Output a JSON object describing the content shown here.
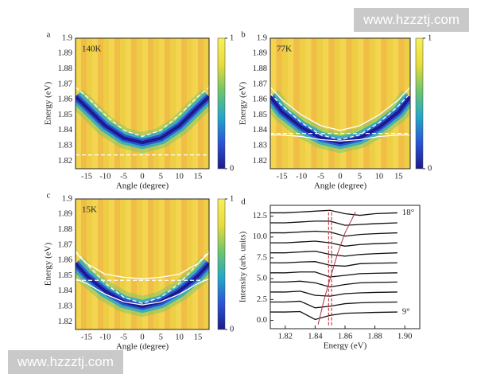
{
  "chart_data": [
    {
      "type": "heatmap",
      "label": "a",
      "annotation": "140K",
      "xlabel": "Angle (degree)",
      "ylabel": "Energy (eV)",
      "xlim": [
        -18,
        18
      ],
      "xticks": [
        -15,
        -10,
        -5,
        0,
        5,
        10,
        15
      ],
      "ylim": [
        1.815,
        1.9
      ],
      "yticks": [
        1.82,
        1.83,
        1.84,
        1.85,
        1.86,
        1.87,
        1.88,
        1.89,
        1.9
      ],
      "clim": [
        0,
        1
      ],
      "colorbar_ticks": [
        0,
        1
      ],
      "colormap": [
        "#1d1a8a",
        "#2a55d6",
        "#25a8c8",
        "#6fc66a",
        "#e9dc3c",
        "#f7f05a"
      ],
      "background": "#f2c64a",
      "x": [
        -18,
        -15,
        -10,
        -5,
        0,
        5,
        10,
        15,
        18
      ],
      "band": [
        1.862,
        1.855,
        1.843,
        1.835,
        1.832,
        1.835,
        1.843,
        1.855,
        1.862
      ],
      "curves": [
        {
          "color": "#ffffff",
          "style": "dashed",
          "values": [
            1.868,
            1.862,
            1.85,
            1.84,
            1.836,
            1.84,
            1.85,
            1.862,
            1.868
          ]
        },
        {
          "color": "#ffffff",
          "style": "dashed",
          "values": [
            1.824,
            1.824,
            1.824,
            1.824,
            1.824,
            1.824,
            1.824,
            1.824,
            1.824
          ]
        }
      ]
    },
    {
      "type": "heatmap",
      "label": "b",
      "annotation": "77K",
      "xlabel": "Angle (degree)",
      "ylabel": "Energy (eV)",
      "xlim": [
        -18,
        18
      ],
      "xticks": [
        -15,
        -10,
        -5,
        0,
        5,
        10,
        15
      ],
      "ylim": [
        1.815,
        1.9
      ],
      "yticks": [
        1.82,
        1.83,
        1.84,
        1.85,
        1.86,
        1.87,
        1.88,
        1.89,
        1.9
      ],
      "clim": [
        0,
        1
      ],
      "colorbar_ticks": [
        0,
        1
      ],
      "colormap": [
        "#1d1a8a",
        "#2a55d6",
        "#25a8c8",
        "#6fc66a",
        "#e9dc3c",
        "#f7f05a"
      ],
      "background": "#f2c64a",
      "x": [
        -18,
        -15,
        -10,
        -5,
        0,
        5,
        10,
        15,
        18
      ],
      "band": [
        1.862,
        1.852,
        1.842,
        1.835,
        1.832,
        1.835,
        1.842,
        1.852,
        1.862
      ],
      "curves": [
        {
          "color": "#ffffff",
          "style": "solid",
          "values": [
            1.868,
            1.86,
            1.85,
            1.843,
            1.84,
            1.843,
            1.85,
            1.86,
            1.868
          ]
        },
        {
          "color": "#ffffff",
          "style": "dashed",
          "values": [
            1.864,
            1.856,
            1.845,
            1.837,
            1.834,
            1.837,
            1.845,
            1.856,
            1.864
          ]
        },
        {
          "color": "#ffffff",
          "style": "dashed",
          "values": [
            1.838,
            1.838,
            1.838,
            1.838,
            1.838,
            1.838,
            1.838,
            1.838,
            1.838
          ]
        },
        {
          "color": "#ffffff",
          "style": "solid",
          "values": [
            1.837,
            1.837,
            1.836,
            1.834,
            1.833,
            1.834,
            1.836,
            1.837,
            1.837
          ]
        }
      ]
    },
    {
      "type": "heatmap",
      "label": "c",
      "annotation": "15K",
      "xlabel": "Angle (degree)",
      "ylabel": "Energy (eV)",
      "xlim": [
        -18,
        18
      ],
      "xticks": [
        -15,
        -10,
        -5,
        0,
        5,
        10,
        15
      ],
      "ylim": [
        1.815,
        1.9
      ],
      "yticks": [
        1.82,
        1.83,
        1.84,
        1.85,
        1.86,
        1.87,
        1.88,
        1.89,
        1.9
      ],
      "clim": [
        0,
        1
      ],
      "colorbar_ticks": [
        0,
        1
      ],
      "colormap": [
        "#1d1a8a",
        "#2a55d6",
        "#25a8c8",
        "#6fc66a",
        "#e9dc3c",
        "#f7f05a"
      ],
      "background": "#f2c64a",
      "x": [
        -18,
        -15,
        -10,
        -5,
        0,
        5,
        10,
        15,
        18
      ],
      "band": [
        1.858,
        1.85,
        1.84,
        1.833,
        1.83,
        1.833,
        1.84,
        1.85,
        1.858
      ],
      "curves": [
        {
          "color": "#ffffff",
          "style": "solid",
          "values": [
            1.865,
            1.858,
            1.851,
            1.849,
            1.848,
            1.849,
            1.851,
            1.858,
            1.865
          ]
        },
        {
          "color": "#ffffff",
          "style": "dashed",
          "values": [
            1.866,
            1.858,
            1.845,
            1.836,
            1.832,
            1.836,
            1.845,
            1.858,
            1.866
          ]
        },
        {
          "color": "#ffffff",
          "style": "dashed",
          "values": [
            1.847,
            1.847,
            1.847,
            1.847,
            1.847,
            1.847,
            1.847,
            1.847,
            1.847
          ]
        },
        {
          "color": "#ffffff",
          "style": "solid",
          "values": [
            1.848,
            1.845,
            1.838,
            1.833,
            1.831,
            1.833,
            1.838,
            1.845,
            1.848
          ]
        }
      ]
    },
    {
      "type": "line",
      "label": "d",
      "xlabel": "Energy (eV)",
      "ylabel": "Intensity (arb. units)",
      "xlim": [
        1.81,
        1.91
      ],
      "xticks": [
        1.82,
        1.84,
        1.86,
        1.88,
        {
          "value": 1.9,
          "label": "1.90"
        }
      ],
      "ylim": [
        -1,
        13.8
      ],
      "yticks": [
        {
          "value": 0,
          "label": "0.0"
        },
        {
          "value": 2.5,
          "label": "2.5"
        },
        {
          "value": 5,
          "label": "5.0"
        },
        {
          "value": 7.5,
          "label": "7.5"
        },
        {
          "value": 10,
          "label": "10.0"
        },
        {
          "value": 12.5,
          "label": "12.5"
        }
      ],
      "annotations": [
        "18°",
        "9°"
      ],
      "x": [
        1.81,
        1.82,
        1.83,
        1.84,
        1.85,
        1.86,
        1.87,
        1.88,
        1.895
      ],
      "series": [
        {
          "color": "#111111",
          "values": [
            1.0,
            1.0,
            1.05,
            0.1,
            0.6,
            0.85,
            0.9,
            0.95,
            1.0
          ]
        },
        {
          "color": "#111111",
          "values": [
            2.2,
            2.2,
            2.3,
            1.5,
            1.7,
            2.0,
            2.1,
            2.15,
            2.2
          ]
        },
        {
          "color": "#111111",
          "values": [
            3.4,
            3.4,
            3.5,
            3.0,
            2.9,
            3.2,
            3.3,
            3.35,
            3.4
          ]
        },
        {
          "color": "#111111",
          "values": [
            4.6,
            4.6,
            4.7,
            4.5,
            4.0,
            4.3,
            4.5,
            4.55,
            4.6
          ]
        },
        {
          "color": "#111111",
          "values": [
            5.7,
            5.7,
            5.8,
            5.8,
            5.2,
            5.4,
            5.6,
            5.65,
            5.7
          ]
        },
        {
          "color": "#111111",
          "values": [
            6.9,
            6.9,
            7.0,
            7.05,
            6.6,
            6.5,
            6.8,
            6.85,
            6.9
          ]
        },
        {
          "color": "#111111",
          "values": [
            8.1,
            8.1,
            8.2,
            8.3,
            7.9,
            7.7,
            7.9,
            8.0,
            8.1
          ]
        },
        {
          "color": "#111111",
          "values": [
            9.3,
            9.3,
            9.4,
            9.5,
            9.3,
            8.9,
            9.1,
            9.2,
            9.3
          ]
        },
        {
          "color": "#111111",
          "values": [
            10.5,
            10.5,
            10.6,
            10.7,
            10.6,
            10.1,
            10.3,
            10.4,
            10.5
          ]
        },
        {
          "color": "#111111",
          "values": [
            11.7,
            11.7,
            11.8,
            11.9,
            11.9,
            11.4,
            11.5,
            11.6,
            11.7
          ]
        },
        {
          "color": "#111111",
          "values": [
            12.9,
            12.9,
            13.0,
            13.1,
            13.2,
            12.8,
            12.6,
            12.8,
            12.9
          ]
        }
      ],
      "guides": [
        {
          "color": "#c0303a",
          "style": "dashed",
          "x": [
            1.849,
            1.849
          ],
          "values": [
            -0.6,
            13.2
          ]
        },
        {
          "color": "#c0303a",
          "style": "dashed",
          "x": [
            1.851,
            1.851
          ],
          "values": [
            -0.6,
            13.2
          ]
        },
        {
          "color": "#b04050",
          "style": "solid",
          "x": [
            1.842,
            1.846,
            1.85,
            1.855,
            1.86,
            1.867
          ],
          "values": [
            -0.5,
            2.5,
            5,
            8,
            10.5,
            13
          ]
        }
      ]
    }
  ],
  "watermarks": [
    "www.hzzztj.com",
    "www.hzzztj.com"
  ]
}
